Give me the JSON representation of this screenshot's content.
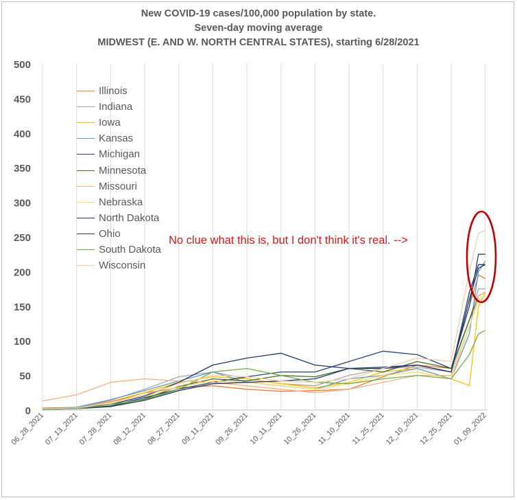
{
  "chart_data": {
    "type": "line",
    "title_lines": [
      "New COVID-19 cases/100,000 population by state.",
      "Seven-day moving average",
      "MIDWEST (E. AND W. NORTH CENTRAL STATES), starting 6/28/2021"
    ],
    "xlabel": "",
    "ylabel": "",
    "ylim": [
      0,
      500
    ],
    "yticks": [
      0,
      50,
      100,
      150,
      200,
      250,
      300,
      350,
      400,
      450,
      500
    ],
    "xlim": [
      "06_28_2021",
      "01_10_2022"
    ],
    "x_tick_labels": [
      "06_28_2021",
      "07_13_2021",
      "07_28_2021",
      "08_12_2021",
      "08_27_2021",
      "09_11_2021",
      "09_26_2021",
      "10_11_2021",
      "10_26_2021",
      "11_10_2021",
      "11_25_2021",
      "12_10_2021",
      "12_25_2021",
      "01_09_2022"
    ],
    "grid": "vertical",
    "legend_position": "top-left",
    "x": [
      "06_28_2021",
      "07_13_2021",
      "07_28_2021",
      "08_12_2021",
      "08_27_2021",
      "09_11_2021",
      "09_26_2021",
      "10_11_2021",
      "10_26_2021",
      "11_10_2021",
      "11_25_2021",
      "12_10_2021",
      "12_25_2021",
      "01_02_2022",
      "01_06_2022",
      "01_09_2022"
    ],
    "series": [
      {
        "name": "Illinois",
        "color": "#ed7d31",
        "values": [
          3,
          4,
          12,
          25,
          32,
          35,
          30,
          27,
          28,
          30,
          48,
          65,
          60,
          150,
          195,
          190
        ]
      },
      {
        "name": "Indiana",
        "color": "#a5a5a5",
        "values": [
          2,
          3,
          14,
          30,
          48,
          55,
          45,
          38,
          35,
          50,
          60,
          62,
          55,
          130,
          175,
          175
        ]
      },
      {
        "name": "Iowa",
        "color": "#ffc000",
        "values": [
          1,
          2,
          10,
          25,
          40,
          48,
          45,
          38,
          32,
          40,
          55,
          60,
          45,
          35,
          150,
          170
        ]
      },
      {
        "name": "Kansas",
        "color": "#5b9bd5",
        "values": [
          2,
          4,
          15,
          28,
          42,
          55,
          40,
          35,
          30,
          45,
          50,
          60,
          45,
          110,
          200,
          215
        ]
      },
      {
        "name": "Michigan",
        "color": "#264478",
        "values": [
          1,
          2,
          6,
          18,
          30,
          40,
          48,
          55,
          55,
          70,
          85,
          80,
          60,
          150,
          225,
          225
        ]
      },
      {
        "name": "Minnesota",
        "color": "#43682b",
        "values": [
          1,
          2,
          6,
          16,
          34,
          45,
          42,
          50,
          48,
          60,
          55,
          70,
          60,
          130,
          165,
          170
        ]
      },
      {
        "name": "Missouri",
        "color": "#f4b183",
        "values": [
          13,
          22,
          40,
          45,
          42,
          40,
          35,
          30,
          25,
          30,
          40,
          50,
          50,
          120,
          165,
          170
        ]
      },
      {
        "name": "Nebraska",
        "color": "#ffd966",
        "values": [
          1,
          2,
          8,
          20,
          33,
          42,
          40,
          35,
          30,
          38,
          50,
          55,
          45,
          120,
          160,
          165
        ]
      },
      {
        "name": "North Dakota",
        "color": "#1f3864",
        "values": [
          1,
          3,
          8,
          20,
          40,
          65,
          75,
          82,
          65,
          60,
          60,
          65,
          55,
          160,
          205,
          210
        ]
      },
      {
        "name": "Ohio",
        "color": "#203864",
        "values": [
          1,
          2,
          5,
          14,
          28,
          38,
          40,
          42,
          45,
          60,
          62,
          65,
          55,
          170,
          210,
          210
        ]
      },
      {
        "name": "South Dakota",
        "color": "#70ad47",
        "values": [
          1,
          2,
          8,
          15,
          30,
          55,
          60,
          50,
          40,
          38,
          45,
          50,
          45,
          80,
          110,
          115
        ]
      },
      {
        "name": "Wisconsin",
        "color": "#f8cbad",
        "values": [
          2,
          3,
          10,
          22,
          38,
          50,
          48,
          42,
          40,
          45,
          60,
          75,
          70,
          200,
          255,
          260
        ]
      }
    ],
    "annotation": "No clue what this is, but I don't think it's real. -->",
    "annotation_color": "#e01616"
  }
}
